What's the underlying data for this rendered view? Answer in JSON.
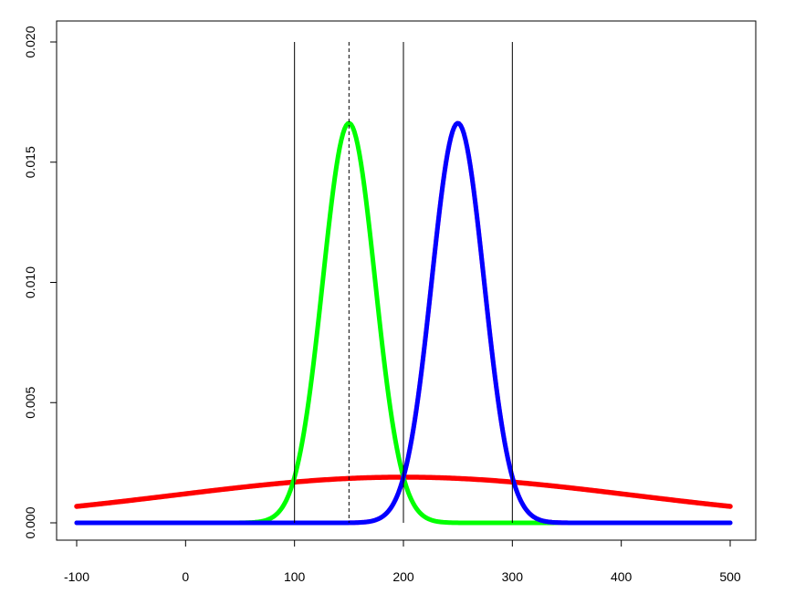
{
  "chart_data": {
    "type": "line",
    "title": "",
    "xlabel": "",
    "ylabel": "",
    "xlim": [
      -100,
      500
    ],
    "ylim": [
      0,
      0.02
    ],
    "grid": false,
    "x_ticks": [
      -100,
      0,
      100,
      200,
      300,
      400,
      500
    ],
    "x_tick_labels": [
      "-100",
      "0",
      "100",
      "200",
      "300",
      "400",
      "500"
    ],
    "y_ticks": [
      0,
      0.005,
      0.01,
      0.015,
      0.02
    ],
    "y_tick_labels": [
      "0.000",
      "0.005",
      "0.010",
      "0.015",
      "0.020"
    ],
    "series": [
      {
        "color": "#ff0000",
        "distribution": "normal",
        "mean": 200,
        "sd": 210,
        "x_range": [
          -100,
          500
        ]
      },
      {
        "color": "#00ff00",
        "distribution": "normal",
        "mean": 150,
        "sd": 24,
        "x_range": [
          -100,
          500
        ]
      },
      {
        "color": "#ff00ff",
        "distribution": "normal",
        "mean": 250,
        "sd": 24,
        "x_range": [
          -100,
          500
        ]
      },
      {
        "color": "#0000ff",
        "distribution": "normal",
        "mean": 250,
        "sd": 24,
        "x_range": [
          -100,
          500
        ]
      }
    ],
    "vlines": [
      {
        "x": 100,
        "style": "solid",
        "y_range": [
          0,
          0.02
        ]
      },
      {
        "x": 150,
        "style": "dashed",
        "y_range": [
          0,
          0.02
        ]
      },
      {
        "x": 200,
        "style": "solid",
        "y_range": [
          0,
          0.02
        ]
      },
      {
        "x": 300,
        "style": "solid",
        "y_range": [
          0,
          0.02
        ]
      }
    ]
  }
}
